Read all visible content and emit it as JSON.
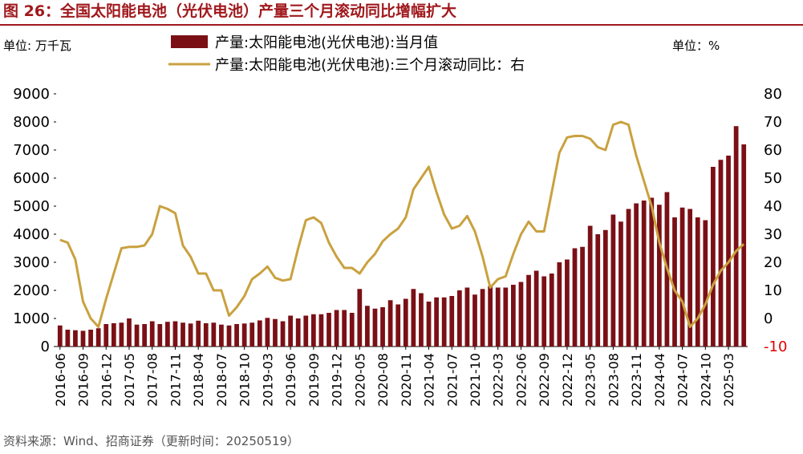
{
  "chart_data": {
    "type": "bar-line",
    "title": "图 26：全国太阳能电池（光伏电池）产量三个月滚动同比增幅扩大",
    "y_unit": "单位: 万千瓦",
    "y2_unit": "单位：%",
    "source": "资料来源：Wind、招商证券（更新时间：20250519）",
    "categories": [
      "2016-06",
      null,
      null,
      "2016-09",
      null,
      null,
      "2016-12",
      null,
      null,
      "2017-05",
      null,
      null,
      "2017-08",
      null,
      null,
      "2017-11",
      null,
      null,
      "2018-04",
      null,
      null,
      "2018-07",
      null,
      null,
      "2018-10",
      null,
      null,
      "2019-03",
      null,
      null,
      "2019-06",
      null,
      null,
      "2019-09",
      null,
      null,
      "2019-12",
      null,
      null,
      "2020-05",
      null,
      null,
      "2020-08",
      null,
      null,
      "2020-11",
      null,
      null,
      "2021-04",
      null,
      null,
      "2021-07",
      null,
      null,
      "2021-10",
      null,
      null,
      "2022-03",
      null,
      null,
      "2022-06",
      null,
      null,
      "2022-09",
      null,
      null,
      "2022-12",
      null,
      null,
      "2023-05",
      null,
      null,
      "2023-08",
      null,
      null,
      "2023-11",
      null,
      null,
      "2024-04",
      null,
      null,
      "2024-07",
      null,
      null,
      "2024-10",
      null,
      null,
      "2025-03",
      null,
      null
    ],
    "series": [
      {
        "name": "产量:太阳能电池(光伏电池):当月值",
        "type": "bar",
        "color": "#7a1016",
        "values": [
          750,
          600,
          580,
          560,
          600,
          650,
          800,
          830,
          850,
          1000,
          780,
          800,
          900,
          800,
          880,
          900,
          850,
          820,
          920,
          830,
          850,
          780,
          750,
          800,
          820,
          850,
          930,
          1020,
          980,
          900,
          1100,
          1000,
          1100,
          1150,
          1150,
          1200,
          1300,
          1300,
          1200,
          2050,
          1450,
          1350,
          1400,
          1650,
          1500,
          1700,
          2050,
          1900,
          1600,
          1750,
          1750,
          1800,
          2000,
          2100,
          1850,
          2050,
          2150,
          2100,
          2100,
          2200,
          2300,
          2550,
          2700,
          2500,
          2600,
          3000,
          3100,
          3500,
          3550,
          4300,
          4000,
          4150,
          4700,
          4450,
          4900,
          5100,
          5200,
          5300,
          5050,
          5500,
          4600,
          4950,
          4900,
          4600,
          4500,
          6400,
          6650,
          6800,
          7850,
          7200
        ]
      },
      {
        "name": "产量:太阳能电池(光伏电池):三个月滚动同比：右",
        "type": "line",
        "axis": "y2",
        "color": "#c9a13f",
        "values": [
          28,
          27,
          21,
          6,
          0,
          -3,
          7,
          16,
          25,
          25.5,
          25.5,
          26,
          30,
          40,
          39,
          37.5,
          26,
          22,
          16,
          16,
          10,
          10,
          1,
          4,
          8,
          14,
          16,
          18.5,
          14.5,
          13.5,
          14,
          25,
          35,
          36,
          34,
          27,
          22,
          18,
          18,
          16,
          20,
          23,
          27.5,
          30,
          32,
          36,
          46,
          50,
          54,
          45,
          37,
          32,
          33,
          36.5,
          31,
          22,
          11,
          14,
          15,
          23,
          30,
          34.5,
          31,
          31,
          45,
          59,
          64.5,
          65,
          65,
          64,
          61,
          60,
          69,
          70,
          69,
          58,
          49,
          40,
          27,
          18,
          10,
          6,
          -3,
          0,
          5,
          12,
          17,
          20,
          24,
          26.5
        ]
      }
    ],
    "ylim": [
      0,
      9000
    ],
    "yticks": [
      0,
      1000,
      2000,
      3000,
      4000,
      5000,
      6000,
      7000,
      8000,
      9000
    ],
    "y2lim": [
      -10,
      80
    ],
    "y2ticks": [
      -10,
      0,
      10,
      20,
      30,
      40,
      50,
      60,
      70,
      80
    ]
  }
}
